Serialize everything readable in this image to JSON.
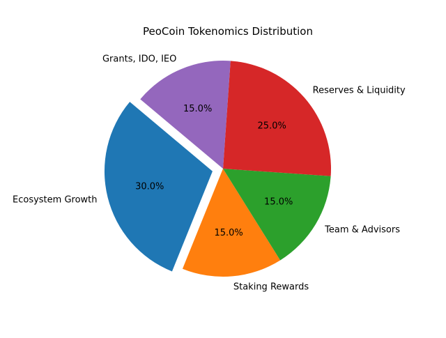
{
  "chart_data": {
    "type": "pie",
    "title": "PeoCoin Tokenomics Distribution",
    "slices": [
      {
        "label": "Ecosystem Growth",
        "value": 30.0,
        "pct_label": "30.0%",
        "color": "#1f77b4",
        "exploded": true
      },
      {
        "label": "Staking Rewards",
        "value": 15.0,
        "pct_label": "15.0%",
        "color": "#ff7f0e",
        "exploded": false
      },
      {
        "label": "Team & Advisors",
        "value": 15.0,
        "pct_label": "15.0%",
        "color": "#2ca02c",
        "exploded": false
      },
      {
        "label": "Reserves & Liquidity",
        "value": 25.0,
        "pct_label": "25.0%",
        "color": "#d62728",
        "exploded": false
      },
      {
        "label": "Grants, IDO, IEO",
        "value": 15.0,
        "pct_label": "15.0%",
        "color": "#9467bd",
        "exploded": false
      }
    ]
  }
}
